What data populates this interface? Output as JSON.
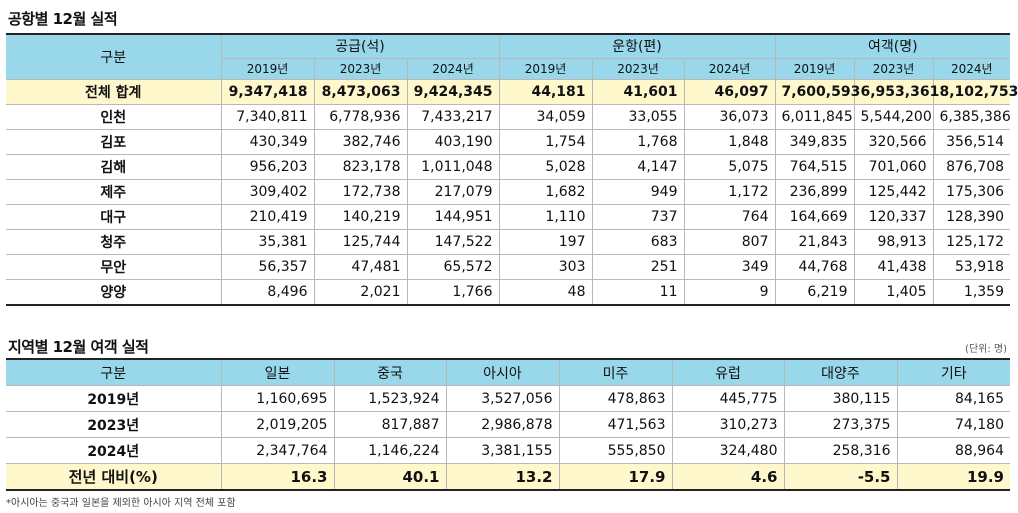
{
  "title1": "공항별 12월 실적",
  "title2": "지역별 12월 여객 실적",
  "unit": "(단위: 명)",
  "note": "*아시아는 중국과 일본을 제외한 아시아 지역 전체 포함",
  "table1": {
    "corner": "구분",
    "groups": [
      "공급(석)",
      "운항(편)",
      "여객(명)"
    ],
    "years": [
      "2019년",
      "2023년",
      "2024년",
      "2019년",
      "2023년",
      "2024년",
      "2019년",
      "2023년",
      "2024년"
    ],
    "rows": [
      {
        "label": "전체 합계",
        "vals": [
          "9,347,418",
          "8,473,063",
          "9,424,345",
          "44,181",
          "41,601",
          "46,097",
          "7,600,593",
          "6,953,361",
          "8,102,753"
        ]
      },
      {
        "label": "인천",
        "vals": [
          "7,340,811",
          "6,778,936",
          "7,433,217",
          "34,059",
          "33,055",
          "36,073",
          "6,011,845",
          "5,544,200",
          "6,385,386"
        ]
      },
      {
        "label": "김포",
        "vals": [
          "430,349",
          "382,746",
          "403,190",
          "1,754",
          "1,768",
          "1,848",
          "349,835",
          "320,566",
          "356,514"
        ]
      },
      {
        "label": "김해",
        "vals": [
          "956,203",
          "823,178",
          "1,011,048",
          "5,028",
          "4,147",
          "5,075",
          "764,515",
          "701,060",
          "876,708"
        ]
      },
      {
        "label": "제주",
        "vals": [
          "309,402",
          "172,738",
          "217,079",
          "1,682",
          "949",
          "1,172",
          "236,899",
          "125,442",
          "175,306"
        ]
      },
      {
        "label": "대구",
        "vals": [
          "210,419",
          "140,219",
          "144,951",
          "1,110",
          "737",
          "764",
          "164,669",
          "120,337",
          "128,390"
        ]
      },
      {
        "label": "청주",
        "vals": [
          "35,381",
          "125,744",
          "147,522",
          "197",
          "683",
          "807",
          "21,843",
          "98,913",
          "125,172"
        ]
      },
      {
        "label": "무안",
        "vals": [
          "56,357",
          "47,481",
          "65,572",
          "303",
          "251",
          "349",
          "44,768",
          "41,438",
          "53,918"
        ]
      },
      {
        "label": "양양",
        "vals": [
          "8,496",
          "2,021",
          "1,766",
          "48",
          "11",
          "9",
          "6,219",
          "1,405",
          "1,359"
        ]
      }
    ]
  },
  "table2": {
    "corner": "구분",
    "cols": [
      "일본",
      "중국",
      "아시아",
      "미주",
      "유럽",
      "대양주",
      "기타"
    ],
    "rows": [
      {
        "label": "2019년",
        "vals": [
          "1,160,695",
          "1,523,924",
          "3,527,056",
          "478,863",
          "445,775",
          "380,115",
          "84,165"
        ]
      },
      {
        "label": "2023년",
        "vals": [
          "2,019,205",
          "817,887",
          "2,986,878",
          "471,563",
          "310,273",
          "273,375",
          "74,180"
        ]
      },
      {
        "label": "2024년",
        "vals": [
          "2,347,764",
          "1,146,224",
          "3,381,155",
          "555,850",
          "324,480",
          "258,316",
          "88,964"
        ]
      },
      {
        "label": "전년 대비(%)",
        "vals": [
          "16.3",
          "40.1",
          "13.2",
          "17.9",
          "4.6",
          "-5.5",
          "19.9"
        ]
      }
    ]
  }
}
